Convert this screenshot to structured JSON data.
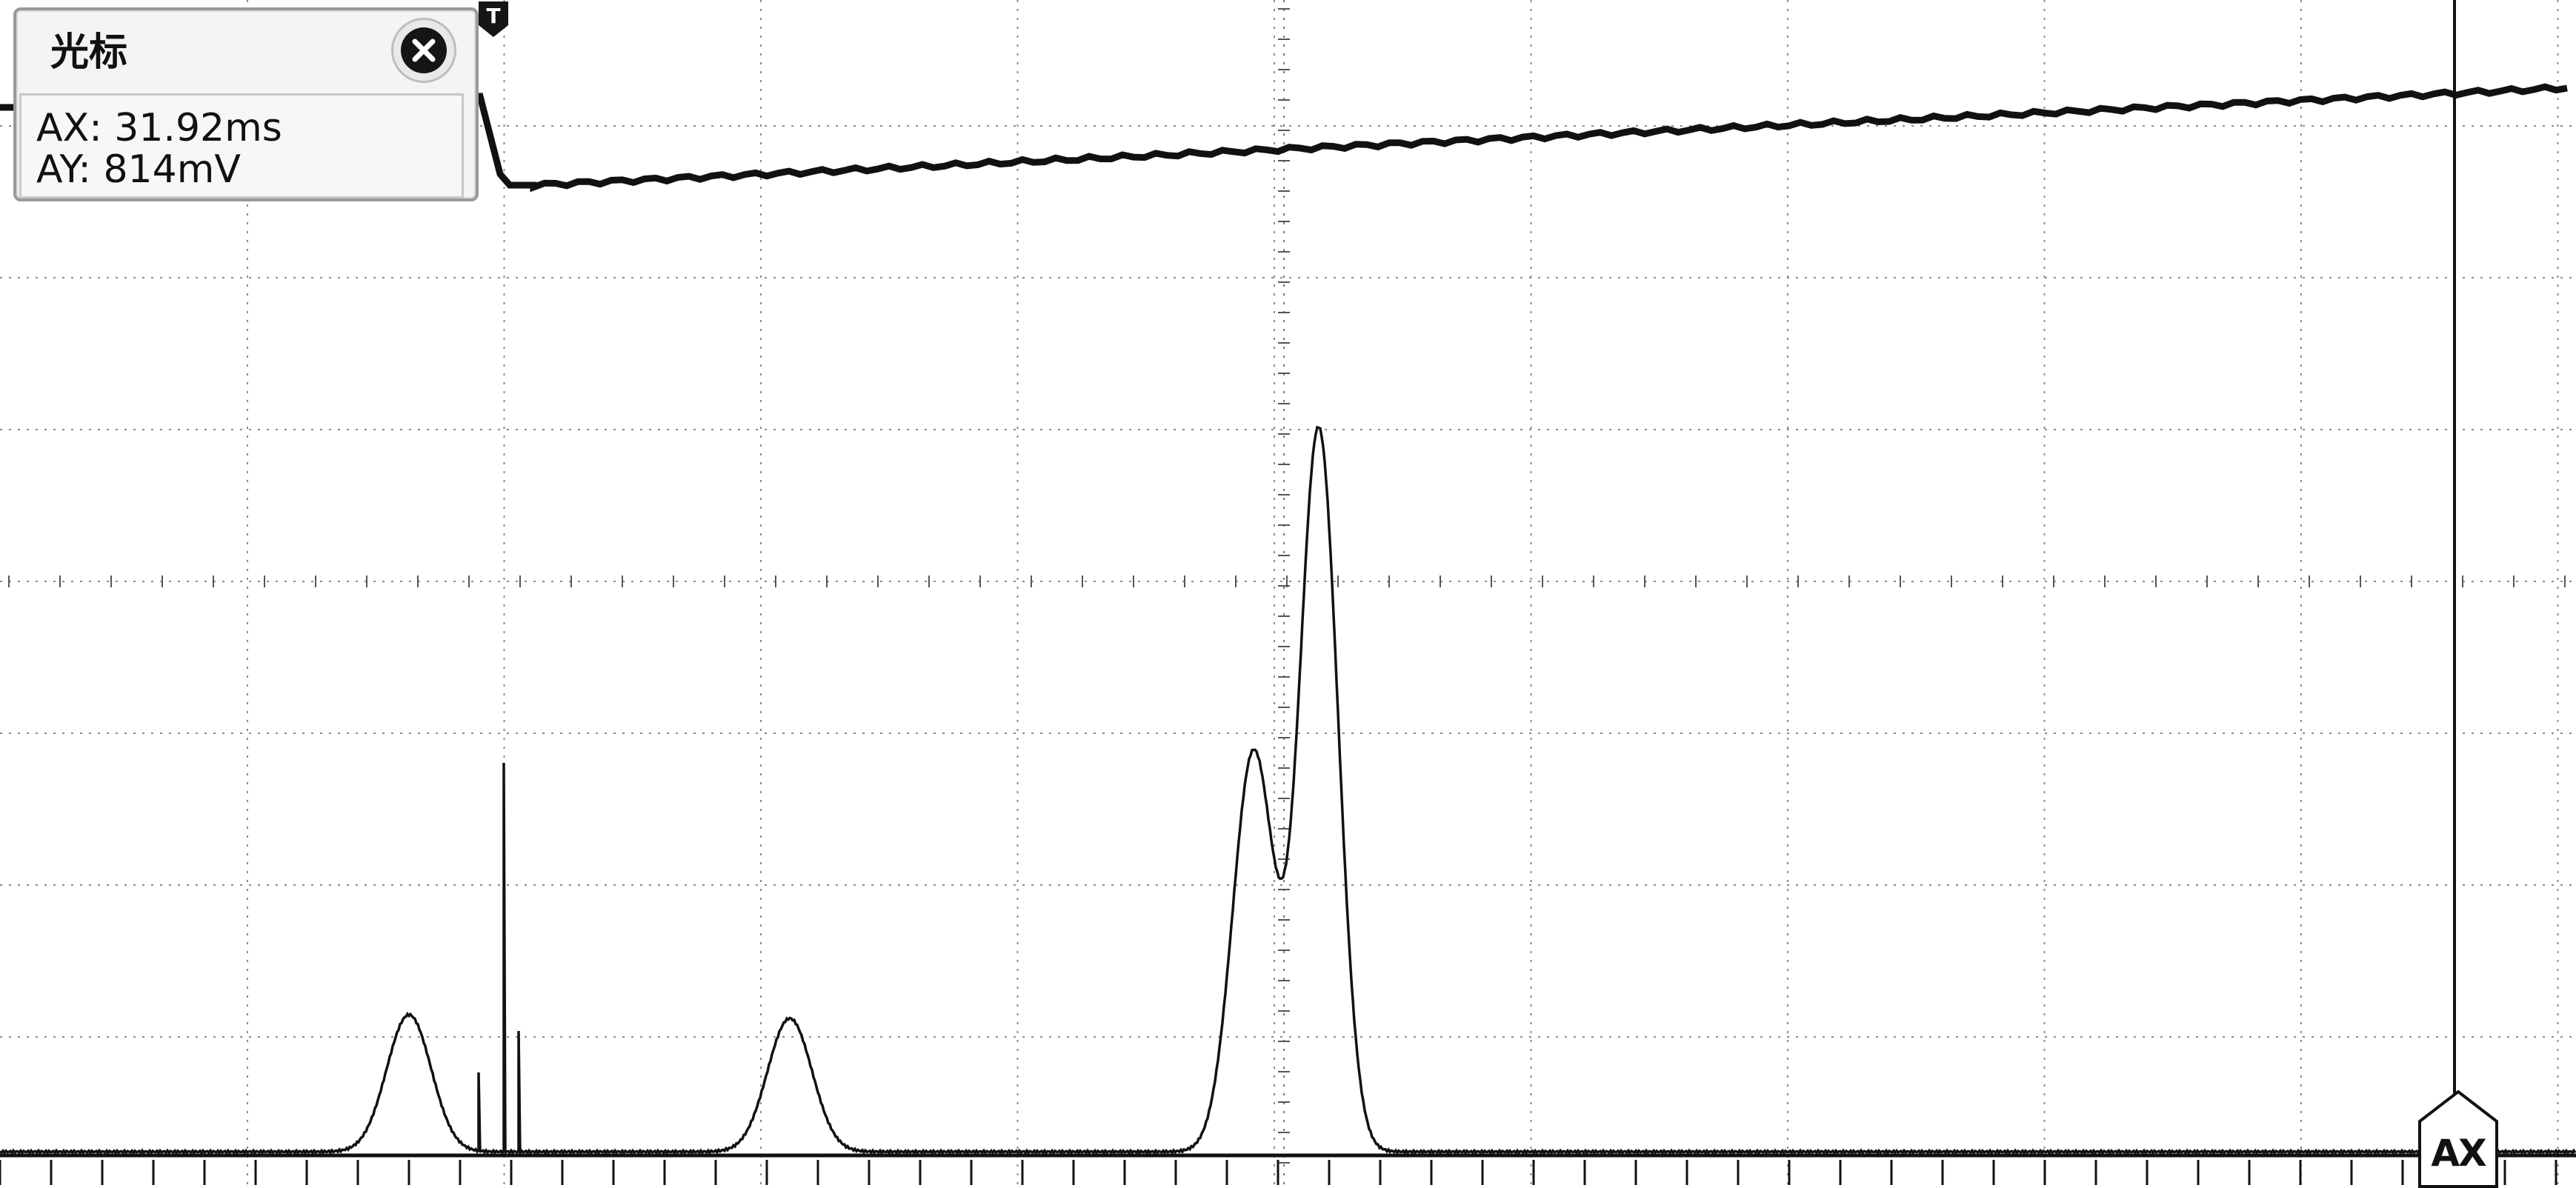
{
  "cursor_panel": {
    "title": "光标",
    "ax_label": "AX:",
    "ax_value": "31.92ms",
    "ay_label": "AY:",
    "ay_value": "814mV"
  },
  "trigger_marker": {
    "label": "T"
  },
  "cursor_tag": {
    "label": "AX"
  },
  "icons": {
    "close": "close-icon",
    "trigger": "trigger-marker-icon"
  },
  "colors": {
    "background": "#ffffff",
    "grid": "#8a8a8a",
    "trace": "#111111",
    "panel_bg": "#f4f4f4"
  }
}
